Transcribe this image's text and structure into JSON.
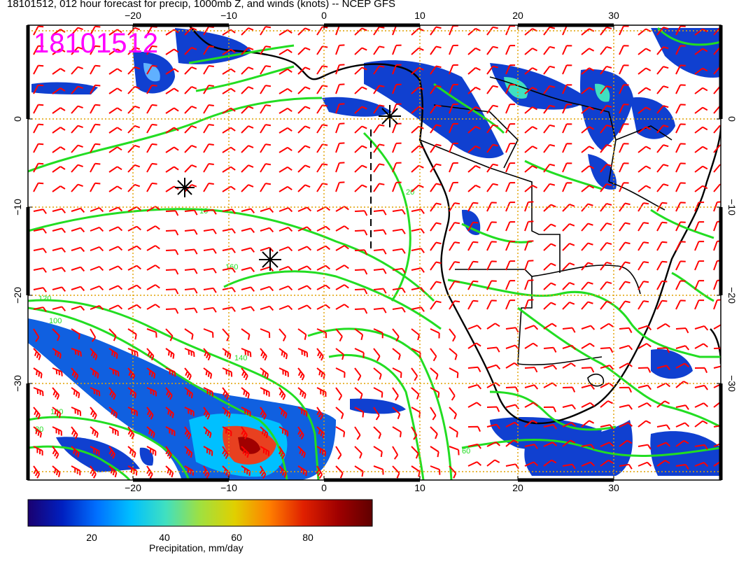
{
  "title": "18101512, 012 hour forecast for precip, 1000mb Z, and winds (knots) -- NCEP GFS",
  "stamp": "18101512",
  "axes": {
    "lon_ticks": [
      "−20",
      "−10",
      "0",
      "10",
      "20",
      "30"
    ],
    "lat_ticks": [
      "0",
      "−10",
      "−20",
      "−30"
    ]
  },
  "contour_labels": [
    "160",
    "140",
    "120",
    "100",
    "80",
    "60",
    "20",
    "10",
    "100"
  ],
  "colorbar": {
    "label": "Precipitation, mm/day",
    "ticks": [
      "20",
      "40",
      "60",
      "80"
    ],
    "colors": [
      "#1a0070",
      "#0020c0",
      "#0070ff",
      "#00c0ff",
      "#40e0c0",
      "#a0e040",
      "#e0d000",
      "#ff8000",
      "#e02000",
      "#a00000",
      "#600000"
    ]
  },
  "colors": {
    "contour": "#00dd00",
    "wind": "#ff0000",
    "grid": "#e0a000",
    "stamp": "#ff00ff"
  }
}
